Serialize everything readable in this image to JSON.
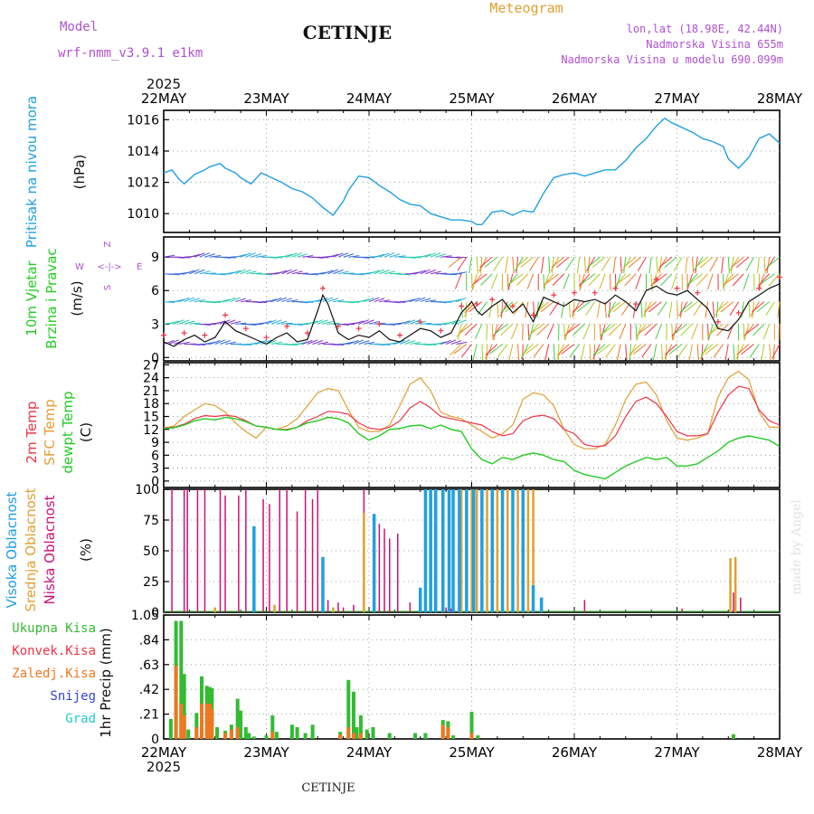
{
  "header": {
    "model_label": "Model",
    "model_name": "wrf-nmm_v3.9.1  e1km",
    "title": "CETINJE",
    "meteogram": "Meteogram",
    "lonlat": "lon,lat (18.98E, 42.44N)",
    "elevation": "Nadmorska Visina 655m",
    "model_elevation": "Nadmorska Visina u modelu 690.099m",
    "year_top": "2025",
    "year_bottom": "2025",
    "footer_title": "CETINJE",
    "watermark": "made by Angel"
  },
  "colors": {
    "pressure": "#1fa0e0",
    "temp2m": "#ee3344",
    "sfc": "#e0a030",
    "dew": "#22cc22",
    "high_cloud": "#1fa0e0",
    "mid_cloud": "#e0a030",
    "low_cloud": "#cc1177",
    "total_precip": "#33bb33",
    "conv_precip": "#ee3344",
    "strat_precip": "#ee7722",
    "snow": "#3344cc",
    "hail": "#22cccc",
    "model_label": "#b050d0",
    "meteogram_label": "#e0a030"
  },
  "chart_data": [
    {
      "type": "line",
      "panel": "pressure",
      "ylabel": [
        "Pritisak na nivou mora",
        "(hPa)"
      ],
      "x_tick_labels": [
        "22MAY",
        "23MAY",
        "24MAY",
        "25MAY",
        "26MAY",
        "27MAY",
        "28MAY"
      ],
      "x_unit": "days since 22MAY 00",
      "ylim": [
        1008.8,
        1016.6
      ],
      "y_ticks": [
        1010,
        1012,
        1014,
        1016
      ],
      "grid": true,
      "series": [
        {
          "x": [
            0,
            0.08,
            0.15,
            0.2,
            0.3,
            0.4,
            0.45,
            0.55,
            0.6,
            0.7,
            0.75,
            0.85,
            0.95,
            1.05,
            1.15,
            1.25,
            1.35,
            1.45,
            1.55,
            1.65,
            1.75,
            1.8,
            1.9,
            2.0,
            2.1,
            2.2,
            2.3,
            2.4,
            2.5,
            2.6,
            2.7,
            2.8,
            2.9,
            3.0,
            3.05,
            3.1,
            3.2,
            3.3,
            3.4,
            3.5,
            3.6,
            3.7,
            3.8,
            3.9,
            4.0,
            4.1,
            4.2,
            4.3,
            4.4,
            4.5,
            4.6,
            4.7,
            4.8,
            4.88,
            4.95,
            5.05,
            5.15,
            5.25,
            5.35,
            5.45,
            5.5,
            5.6,
            5.7,
            5.8,
            5.9,
            6.0
          ],
          "values": [
            1012.6,
            1012.8,
            1012.2,
            1011.9,
            1012.5,
            1012.8,
            1013.0,
            1013.2,
            1012.9,
            1012.6,
            1012.3,
            1011.9,
            1012.6,
            1012.3,
            1012.0,
            1011.6,
            1011.4,
            1011.0,
            1010.4,
            1009.9,
            1010.8,
            1011.5,
            1012.4,
            1012.3,
            1011.8,
            1011.4,
            1010.9,
            1010.6,
            1010.5,
            1010.0,
            1009.8,
            1009.6,
            1009.6,
            1009.5,
            1009.3,
            1009.3,
            1010.1,
            1010.2,
            1009.9,
            1010.2,
            1010.1,
            1011.3,
            1012.3,
            1012.5,
            1012.6,
            1012.4,
            1012.6,
            1012.8,
            1012.8,
            1013.4,
            1014.2,
            1014.8,
            1015.6,
            1016.1,
            1015.8,
            1015.5,
            1015.2,
            1014.8,
            1014.6,
            1014.3,
            1013.5,
            1012.9,
            1013.6,
            1014.8,
            1015.1,
            1014.5
          ],
          "name": "Pritisak"
        }
      ]
    },
    {
      "type": "line",
      "panel": "wind",
      "ylabel": [
        "10m Vjetar",
        "Brzina i Pravac",
        "(m/s)"
      ],
      "direction_legend": [
        "Z",
        "W",
        "<-|->",
        "E",
        "S"
      ],
      "ylim": [
        -0.3,
        10.8
      ],
      "y_ticks": [
        0,
        3,
        6,
        9
      ],
      "grid": true,
      "series": [
        {
          "name": "Brzina",
          "x": [
            0,
            0.1,
            0.2,
            0.3,
            0.4,
            0.5,
            0.6,
            0.7,
            0.8,
            0.9,
            1.0,
            1.1,
            1.2,
            1.3,
            1.4,
            1.5,
            1.55,
            1.6,
            1.7,
            1.8,
            1.9,
            2.0,
            2.1,
            2.2,
            2.3,
            2.4,
            2.5,
            2.6,
            2.7,
            2.8,
            2.9,
            3.0,
            3.05,
            3.1,
            3.2,
            3.3,
            3.4,
            3.5,
            3.6,
            3.7,
            3.8,
            3.9,
            4.0,
            4.1,
            4.2,
            4.3,
            4.4,
            4.5,
            4.6,
            4.7,
            4.8,
            4.9,
            5.0,
            5.1,
            5.2,
            5.3,
            5.4,
            5.5,
            5.6,
            5.7,
            5.8,
            5.9,
            6.0
          ],
          "values": [
            1.4,
            1.0,
            1.6,
            2.0,
            1.4,
            1.8,
            3.2,
            2.4,
            2.0,
            1.6,
            1.2,
            1.8,
            2.2,
            1.4,
            1.6,
            4.2,
            5.6,
            4.8,
            2.2,
            1.6,
            2.0,
            1.8,
            2.4,
            1.6,
            1.4,
            2.0,
            2.6,
            2.4,
            1.8,
            2.2,
            4.0,
            5.0,
            4.2,
            3.8,
            4.6,
            5.2,
            4.0,
            4.8,
            3.2,
            5.4,
            5.0,
            4.6,
            5.2,
            5.0,
            5.2,
            4.8,
            5.6,
            5.0,
            4.2,
            6.0,
            6.4,
            5.8,
            5.6,
            6.0,
            5.2,
            4.4,
            2.6,
            2.4,
            3.4,
            5.0,
            5.6,
            6.2,
            6.6
          ]
        }
      ]
    },
    {
      "type": "line",
      "panel": "temperature",
      "ylabel": [
        "2m Temp",
        "SFC Temp",
        "dewpt Temp",
        "(C)"
      ],
      "ylim": [
        -1.5,
        27.5
      ],
      "y_ticks": [
        0,
        3,
        6,
        9,
        12,
        15,
        18,
        21,
        24,
        27
      ],
      "grid": true,
      "series": [
        {
          "name": "2m Temp",
          "x": [
            0,
            0.1,
            0.2,
            0.3,
            0.4,
            0.5,
            0.6,
            0.7,
            0.8,
            0.9,
            1.0,
            1.1,
            1.2,
            1.3,
            1.4,
            1.5,
            1.6,
            1.7,
            1.8,
            1.9,
            2.0,
            2.1,
            2.2,
            2.3,
            2.4,
            2.5,
            2.6,
            2.7,
            2.8,
            2.9,
            3.0,
            3.1,
            3.2,
            3.3,
            3.4,
            3.5,
            3.6,
            3.7,
            3.8,
            3.9,
            4.0,
            4.1,
            4.2,
            4.3,
            4.4,
            4.5,
            4.6,
            4.7,
            4.8,
            4.9,
            5.0,
            5.1,
            5.2,
            5.3,
            5.4,
            5.5,
            5.6,
            5.7,
            5.8,
            5.9,
            6.0
          ],
          "values": [
            12.3,
            12.5,
            13.2,
            14.5,
            15.2,
            15.0,
            15.3,
            15.0,
            14.0,
            12.8,
            12.5,
            12.0,
            12.0,
            12.5,
            14.0,
            15.0,
            16.2,
            16.0,
            15.5,
            13.5,
            12.3,
            12.0,
            12.5,
            14.0,
            17.0,
            18.5,
            17.0,
            15.0,
            14.5,
            14.0,
            13.5,
            13.0,
            11.5,
            10.5,
            11.0,
            14.0,
            15.0,
            15.3,
            14.5,
            12.0,
            11.0,
            8.5,
            8.0,
            8.2,
            10.5,
            15.0,
            18.5,
            19.5,
            18.0,
            15.0,
            11.5,
            10.5,
            10.5,
            11.0,
            16.0,
            20.0,
            22.0,
            21.5,
            16.5,
            14.0,
            13.0
          ]
        },
        {
          "name": "SFC Temp",
          "x": [
            0,
            0.1,
            0.2,
            0.3,
            0.4,
            0.5,
            0.6,
            0.7,
            0.8,
            0.9,
            1.0,
            1.1,
            1.2,
            1.3,
            1.4,
            1.5,
            1.6,
            1.7,
            1.8,
            1.9,
            2.0,
            2.1,
            2.2,
            2.3,
            2.4,
            2.5,
            2.6,
            2.7,
            2.8,
            2.9,
            3.0,
            3.1,
            3.2,
            3.3,
            3.4,
            3.5,
            3.6,
            3.7,
            3.8,
            3.9,
            4.0,
            4.1,
            4.2,
            4.3,
            4.4,
            4.5,
            4.6,
            4.7,
            4.8,
            4.9,
            5.0,
            5.1,
            5.2,
            5.3,
            5.4,
            5.5,
            5.6,
            5.7,
            5.8,
            5.9,
            6.0
          ],
          "values": [
            12.3,
            12.8,
            15.0,
            16.5,
            18.0,
            17.5,
            16.0,
            13.5,
            11.5,
            10.0,
            12.5,
            12.0,
            12.8,
            14.5,
            17.5,
            20.5,
            21.5,
            21.0,
            16.5,
            12.5,
            11.5,
            11.5,
            13.0,
            17.5,
            22.5,
            24.0,
            21.0,
            16.0,
            15.0,
            14.5,
            13.0,
            11.5,
            10.0,
            11.0,
            13.0,
            19.0,
            20.5,
            20.0,
            17.5,
            12.0,
            8.5,
            7.5,
            7.5,
            8.5,
            13.0,
            19.0,
            22.5,
            23.0,
            20.0,
            14.0,
            10.0,
            9.5,
            10.0,
            11.0,
            19.5,
            24.0,
            25.5,
            23.5,
            16.0,
            12.5,
            12.5
          ]
        },
        {
          "name": "dewpt Temp",
          "x": [
            0,
            0.1,
            0.2,
            0.3,
            0.4,
            0.5,
            0.6,
            0.7,
            0.8,
            0.9,
            1.0,
            1.1,
            1.2,
            1.3,
            1.4,
            1.5,
            1.6,
            1.7,
            1.8,
            1.9,
            2.0,
            2.1,
            2.2,
            2.3,
            2.4,
            2.5,
            2.6,
            2.7,
            2.8,
            2.9,
            3.0,
            3.1,
            3.2,
            3.3,
            3.4,
            3.5,
            3.6,
            3.7,
            3.8,
            3.9,
            4.0,
            4.1,
            4.2,
            4.3,
            4.4,
            4.5,
            4.6,
            4.7,
            4.8,
            4.9,
            5.0,
            5.1,
            5.2,
            5.3,
            5.4,
            5.5,
            5.6,
            5.7,
            5.8,
            5.9,
            6.0
          ],
          "values": [
            12.2,
            12.4,
            13.0,
            14.0,
            14.5,
            14.2,
            14.8,
            14.5,
            13.8,
            12.8,
            12.5,
            12.0,
            11.8,
            12.5,
            13.5,
            14.0,
            14.8,
            14.5,
            13.5,
            11.0,
            9.5,
            10.5,
            12.0,
            12.2,
            12.8,
            13.0,
            12.2,
            13.0,
            12.0,
            11.5,
            7.5,
            5.0,
            4.0,
            5.5,
            5.0,
            6.0,
            6.5,
            6.0,
            5.0,
            4.5,
            2.5,
            1.5,
            1.0,
            0.5,
            2.0,
            3.5,
            4.5,
            5.5,
            5.0,
            5.5,
            3.5,
            3.5,
            4.0,
            5.5,
            7.0,
            9.0,
            10.0,
            10.5,
            10.0,
            9.5,
            8.0
          ]
        }
      ]
    },
    {
      "type": "bar",
      "panel": "cloud",
      "ylabel": [
        "Visoka Oblacnost",
        "Srednja Oblacnost",
        "Niska Oblacnost",
        "(%)"
      ],
      "ylim": [
        0,
        100
      ],
      "y_ticks": [
        0,
        25,
        50,
        75,
        100
      ],
      "grid": true,
      "series": [
        {
          "name": "Niska",
          "x": [
            0.08,
            0.2,
            0.23,
            0.33,
            0.4,
            0.55,
            0.6,
            0.73,
            0.8,
            0.97,
            1.03,
            1.13,
            1.2,
            1.3,
            1.38,
            1.45,
            1.5,
            1.6,
            1.7,
            1.75,
            1.85,
            1.95,
            2.1,
            2.15,
            2.2,
            2.28,
            2.4,
            2.5,
            2.6,
            2.65,
            2.75,
            2.8,
            3.1,
            3.25,
            3.4,
            4.1,
            5.05,
            5.55,
            5.62
          ],
          "values": [
            100,
            100,
            100,
            100,
            100,
            100,
            95,
            95,
            100,
            92,
            88,
            100,
            100,
            82,
            100,
            92,
            100,
            10,
            8,
            4,
            6,
            100,
            72,
            68,
            60,
            64,
            8,
            6,
            4,
            4,
            4,
            3,
            8,
            4,
            4,
            10,
            3,
            16,
            12
          ]
        },
        {
          "name": "Srednja",
          "x": [
            0.5,
            1.08,
            1.65,
            1.95,
            2.05,
            2.6,
            2.72,
            2.82,
            2.9,
            3.0,
            3.05,
            3.15,
            3.25,
            3.35,
            3.45,
            3.5,
            3.55,
            3.6,
            5.52,
            5.57
          ],
          "values": [
            4,
            6,
            4,
            81,
            4,
            100,
            100,
            100,
            100,
            100,
            100,
            100,
            100,
            100,
            100,
            100,
            100,
            100,
            44,
            45
          ]
        },
        {
          "name": "Visoka",
          "x": [
            0.88,
            1.55,
            2.05,
            2.5,
            2.55,
            2.6,
            2.65,
            2.72,
            2.78,
            2.82,
            2.88,
            2.95,
            3.02,
            3.1,
            3.2,
            3.3,
            3.4,
            3.5,
            3.6,
            3.68
          ],
          "values": [
            70,
            45,
            80,
            20,
            100,
            100,
            100,
            100,
            100,
            100,
            100,
            100,
            100,
            100,
            100,
            100,
            100,
            100,
            22,
            12
          ]
        }
      ]
    },
    {
      "type": "bar",
      "panel": "precip",
      "ylabel": [
        "1hr Precip (mm)"
      ],
      "legend": [
        "Ukupna Kisa",
        "Konvek.Kisa",
        "Zaledj.Kisa",
        "Snijeg",
        "Grad"
      ],
      "ylim": [
        0,
        1.05
      ],
      "y_ticks": [
        0,
        0.21,
        0.42,
        0.63,
        0.84,
        1.05
      ],
      "grid": true,
      "series": [
        {
          "name": "Ukupna Kisa",
          "x": [
            0.07,
            0.12,
            0.17,
            0.2,
            0.24,
            0.32,
            0.37,
            0.42,
            0.45,
            0.47,
            0.52,
            0.6,
            0.66,
            0.72,
            0.75,
            0.8,
            0.83,
            0.88,
            1.0,
            1.06,
            1.1,
            1.25,
            1.3,
            1.38,
            1.45,
            1.72,
            1.8,
            1.85,
            1.88,
            1.92,
            1.98,
            2.04,
            2.2,
            2.45,
            2.55,
            2.72,
            2.77,
            2.82,
            3.0,
            3.06,
            5.55
          ],
          "values": [
            0.17,
            1.0,
            1.0,
            0.55,
            0.08,
            0.22,
            0.53,
            0.45,
            0.44,
            0.43,
            0.1,
            0.07,
            0.12,
            0.34,
            0.24,
            0.1,
            0.05,
            0.02,
            0.03,
            0.2,
            0.06,
            0.12,
            0.1,
            0.05,
            0.12,
            0.06,
            0.5,
            0.4,
            0.1,
            0.2,
            0.08,
            0.1,
            0.05,
            0.05,
            0.05,
            0.16,
            0.15,
            0.03,
            0.23,
            0.03,
            0.04
          ]
        },
        {
          "name": "Konvek.Kisa",
          "x": [
            0.12,
            0.17,
            0.2,
            0.32,
            0.37,
            0.42,
            0.45,
            0.47,
            0.6,
            0.66,
            0.72,
            1.06,
            1.72,
            1.8,
            1.85,
            1.92,
            2.72,
            2.77,
            3.0
          ],
          "values": [
            0.62,
            0.3,
            0.2,
            0.1,
            0.3,
            0.3,
            0.3,
            0.25,
            0.05,
            0.08,
            0.1,
            0.06,
            0.04,
            0.1,
            0.05,
            0.05,
            0.12,
            0.1,
            0.05
          ]
        }
      ]
    }
  ]
}
